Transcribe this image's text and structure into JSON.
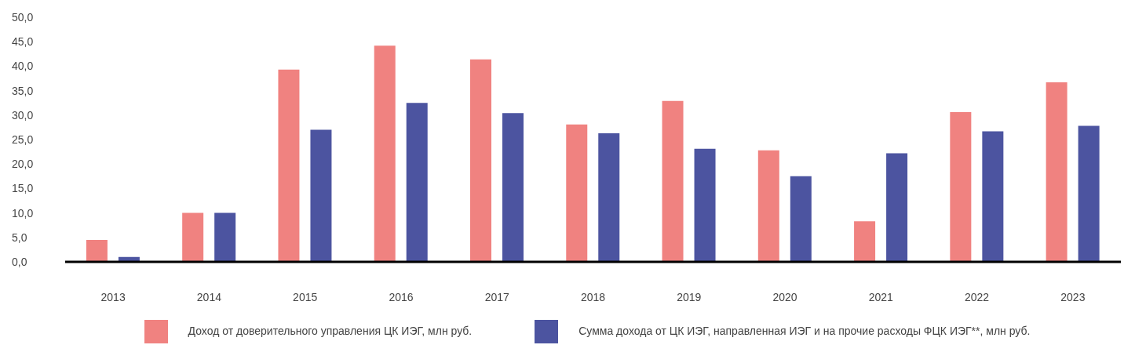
{
  "chart_data": {
    "type": "bar",
    "categories": [
      "2013",
      "2014",
      "2015",
      "2016",
      "2017",
      "2018",
      "2019",
      "2020",
      "2021",
      "2022",
      "2023"
    ],
    "series": [
      {
        "name": "Доход от доверительного управления ЦК ИЭГ, млн руб.",
        "color": "#f08280",
        "values": [
          4.5,
          10.0,
          39.3,
          44.2,
          41.4,
          28.1,
          32.9,
          22.8,
          8.3,
          30.6,
          36.7
        ]
      },
      {
        "name": "Сумма дохода от ЦК ИЭГ, направленная ИЭГ и на прочие расходы ФЦК ИЭГ**, млн руб.",
        "color": "#4c54a0",
        "values": [
          1.0,
          10.0,
          27.0,
          32.5,
          30.4,
          26.3,
          23.1,
          17.5,
          22.2,
          26.7,
          27.8
        ]
      }
    ],
    "ylim": [
      0,
      50
    ],
    "yticks": [
      {
        "value": 0,
        "label": "0,0"
      },
      {
        "value": 5,
        "label": "5,0"
      },
      {
        "value": 10,
        "label": "10,0"
      },
      {
        "value": 15,
        "label": "15,0"
      },
      {
        "value": 20,
        "label": "20,0"
      },
      {
        "value": 25,
        "label": "25,0"
      },
      {
        "value": 30,
        "label": "30,0"
      },
      {
        "value": 35,
        "label": "35,0"
      },
      {
        "value": 40,
        "label": "40,0"
      },
      {
        "value": 45,
        "label": "45,0"
      },
      {
        "value": 50,
        "label": "50,0"
      }
    ],
    "grid": false,
    "legend": "bottom"
  }
}
